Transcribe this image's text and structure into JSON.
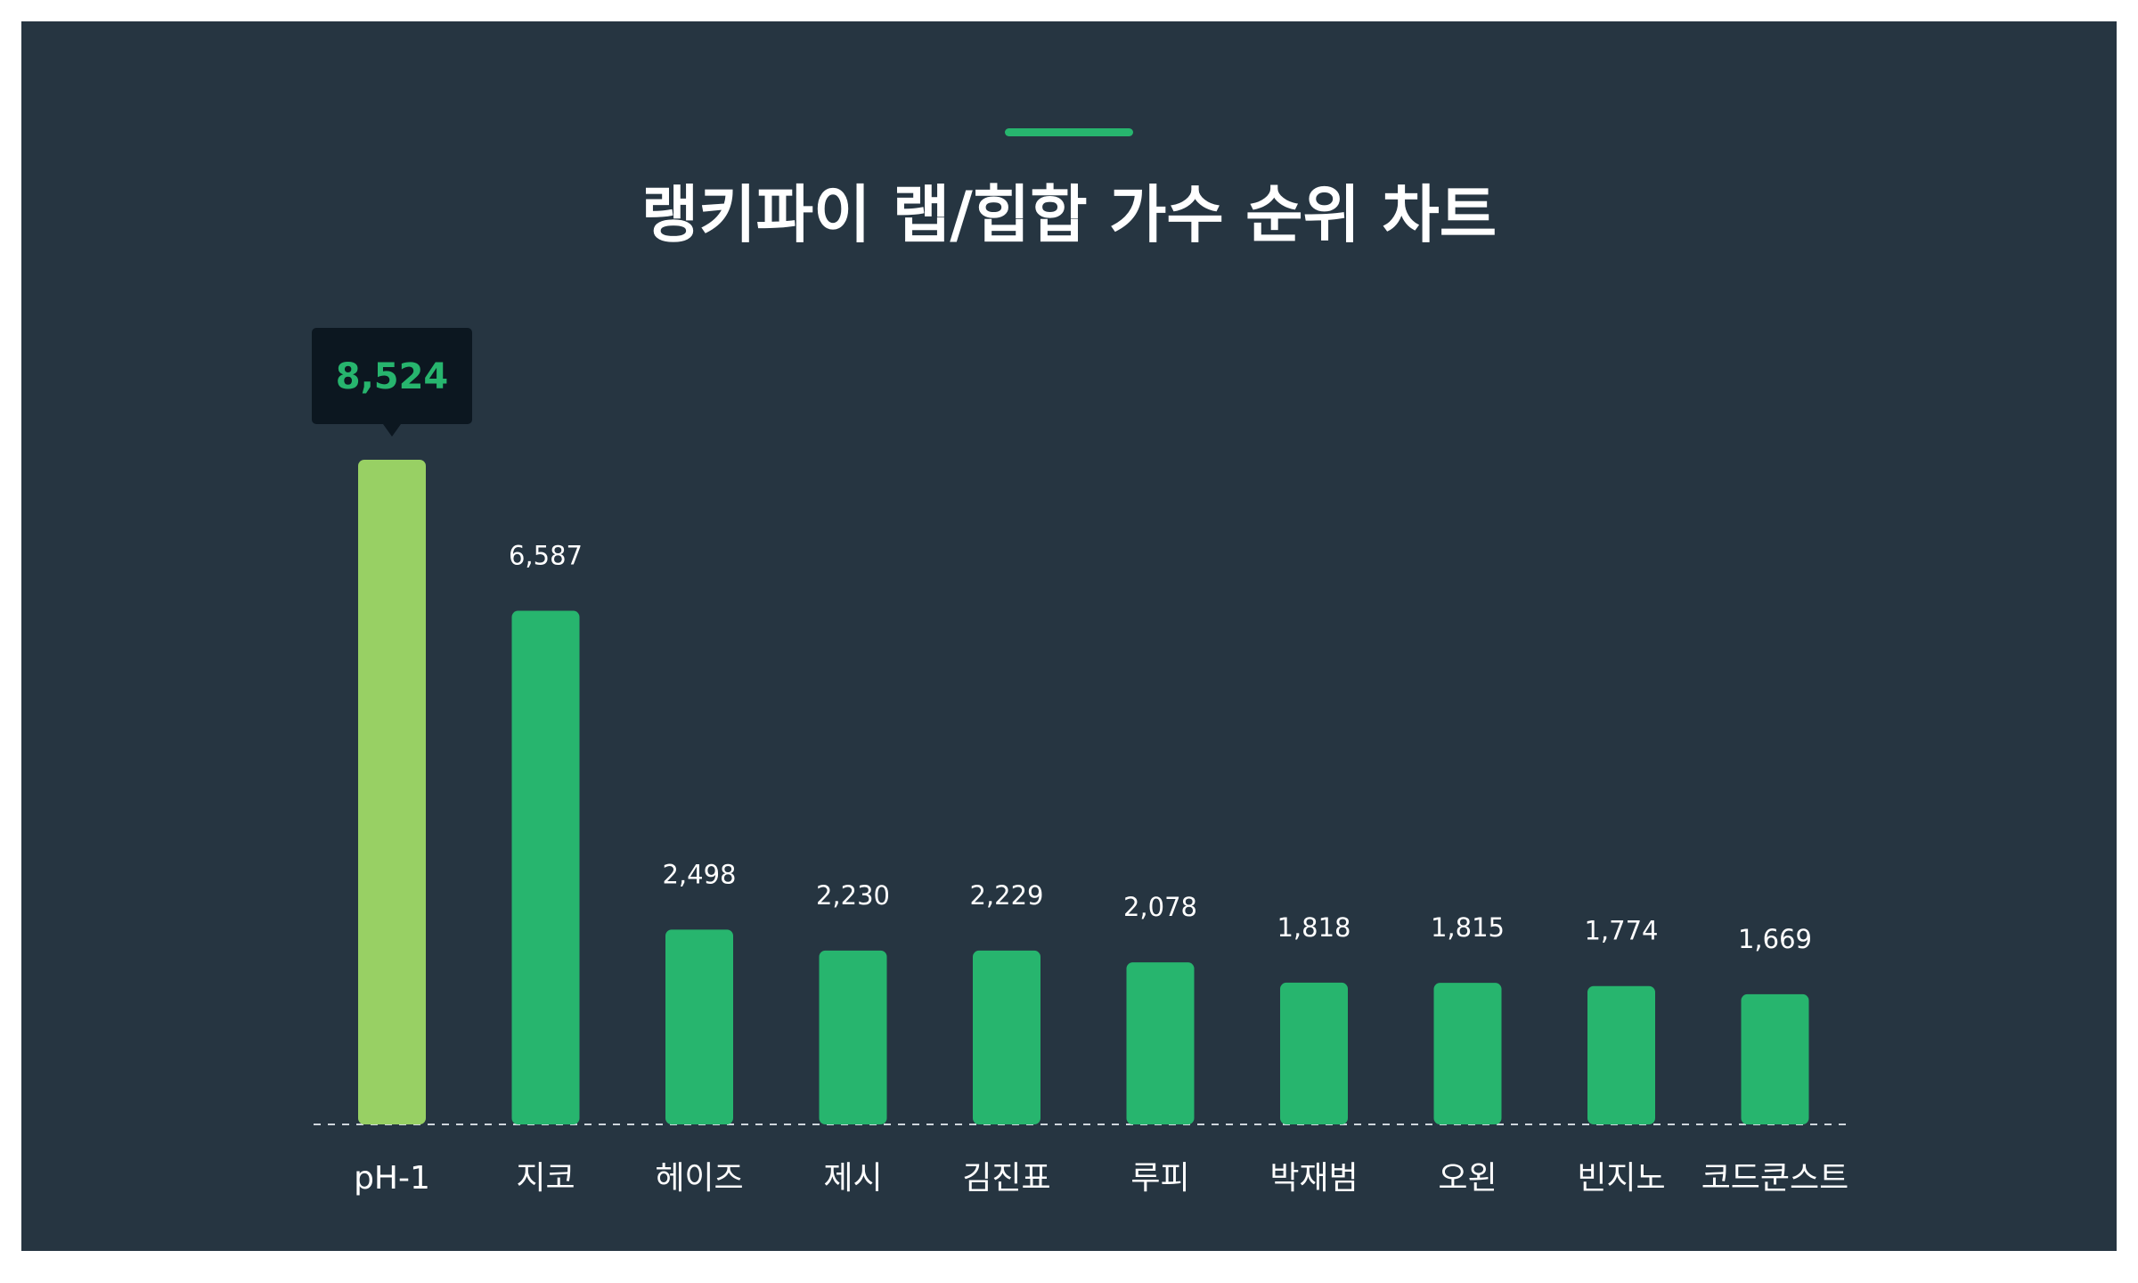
{
  "title": "랭키파이 랩/힙합 가수 순위 차트",
  "colors": {
    "background": "#263541",
    "accent": "#27b56e",
    "highlight_bar": "#98d064",
    "bar": "#27b56e",
    "tooltip_bg": "#0c1720",
    "text": "#ffffff"
  },
  "chart_data": {
    "type": "bar",
    "title": "랭키파이 랩/힙합 가수 순위 차트",
    "categories": [
      "pH-1",
      "지코",
      "헤이즈",
      "제시",
      "김진표",
      "루피",
      "박재범",
      "오왼",
      "빈지노",
      "코드쿤스트"
    ],
    "values": [
      8524,
      6587,
      2498,
      2230,
      2229,
      2078,
      1818,
      1815,
      1774,
      1669
    ],
    "value_labels": [
      "8,524",
      "6,587",
      "2,498",
      "2,230",
      "2,229",
      "2,078",
      "1,818",
      "1,815",
      "1,774",
      "1,669"
    ],
    "highlighted_index": 0,
    "ylim": [
      0,
      8524
    ],
    "grid": false,
    "baseline": "dashed"
  }
}
